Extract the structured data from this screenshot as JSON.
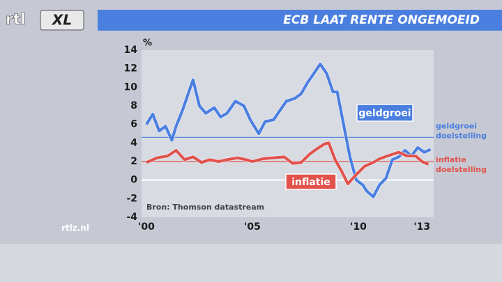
{
  "logo": {
    "left": "rtl",
    "right": "XL"
  },
  "footer": "rtlz.nl",
  "chart_data": {
    "type": "line",
    "title": "ECB LAAT RENTE ONGEMOEID",
    "y_unit": "%",
    "source": "Bron: Thomson datastream",
    "xlim": [
      1999.77,
      2013.55
    ],
    "xticks": [
      {
        "value": 2000,
        "label": "'00"
      },
      {
        "value": 2005,
        "label": "'05"
      },
      {
        "value": 2010,
        "label": "'10"
      },
      {
        "value": 2013,
        "label": "'13"
      }
    ],
    "ylim": [
      -4,
      14
    ],
    "yticks": [
      -4,
      -2,
      0,
      2,
      4,
      6,
      8,
      10,
      12,
      14
    ],
    "zero_line": true,
    "series": [
      {
        "name": "geldgroei",
        "color": "#4a7fe0",
        "x": [
          2000,
          2000.3,
          2000.6,
          2000.9,
          2001.2,
          2001.4,
          2001.7,
          2002.0,
          2002.2,
          2002.5,
          2002.8,
          2003.2,
          2003.5,
          2003.8,
          2004.2,
          2004.6,
          2004.9,
          2005.3,
          2005.6,
          2006.0,
          2006.3,
          2006.6,
          2007.0,
          2007.3,
          2007.6,
          2007.9,
          2008.2,
          2008.5,
          2008.8,
          2009.0,
          2009.3,
          2009.6,
          2009.9,
          2010.2,
          2010.4,
          2010.7,
          2011.0,
          2011.3,
          2011.6,
          2011.9,
          2012.2,
          2012.5,
          2012.8,
          2013.1,
          2013.4
        ],
        "values": [
          6,
          7.1,
          5.3,
          5.8,
          4.3,
          5.8,
          7.5,
          9.5,
          10.8,
          8,
          7.2,
          7.8,
          6.8,
          7.2,
          8.5,
          8,
          6.5,
          5,
          6.3,
          6.5,
          7.5,
          8.5,
          8.8,
          9.3,
          10.5,
          11.5,
          12.5,
          11.5,
          9.5,
          9.5,
          6,
          2.5,
          0,
          -0.5,
          -1.2,
          -1.8,
          -0.5,
          0.2,
          2.2,
          2.5,
          3.2,
          2.6,
          3.5,
          3.0,
          3.3
        ]
      },
      {
        "name": "inflatie",
        "color": "#e2524a",
        "x": [
          2000,
          2000.5,
          2001,
          2001.4,
          2001.8,
          2002.2,
          2002.6,
          2003,
          2003.4,
          2003.8,
          2004.3,
          2004.7,
          2005,
          2005.5,
          2006,
          2006.5,
          2006.9,
          2007.3,
          2007.7,
          2008,
          2008.4,
          2008.6,
          2008.9,
          2009.2,
          2009.5,
          2009.9,
          2010.3,
          2010.7,
          2011,
          2011.5,
          2011.9,
          2012.3,
          2012.7,
          2013,
          2013.3
        ],
        "values": [
          1.9,
          2.4,
          2.6,
          3.2,
          2.2,
          2.5,
          1.9,
          2.2,
          2,
          2.2,
          2.4,
          2.2,
          2,
          2.3,
          2.4,
          2.5,
          1.8,
          1.9,
          2.8,
          3.3,
          3.9,
          4,
          2.2,
          1,
          -0.4,
          0.6,
          1.5,
          1.9,
          2.3,
          2.7,
          3.0,
          2.6,
          2.6,
          2.0,
          1.7
        ]
      }
    ],
    "reference_lines": [
      {
        "label": [
          "geldgroei",
          "doelstelling"
        ],
        "value": 4.6,
        "color": "#4a7fe0"
      },
      {
        "label": [
          "inflatie",
          "doelstelling"
        ],
        "value": 2,
        "color": "#e2524a"
      }
    ]
  }
}
